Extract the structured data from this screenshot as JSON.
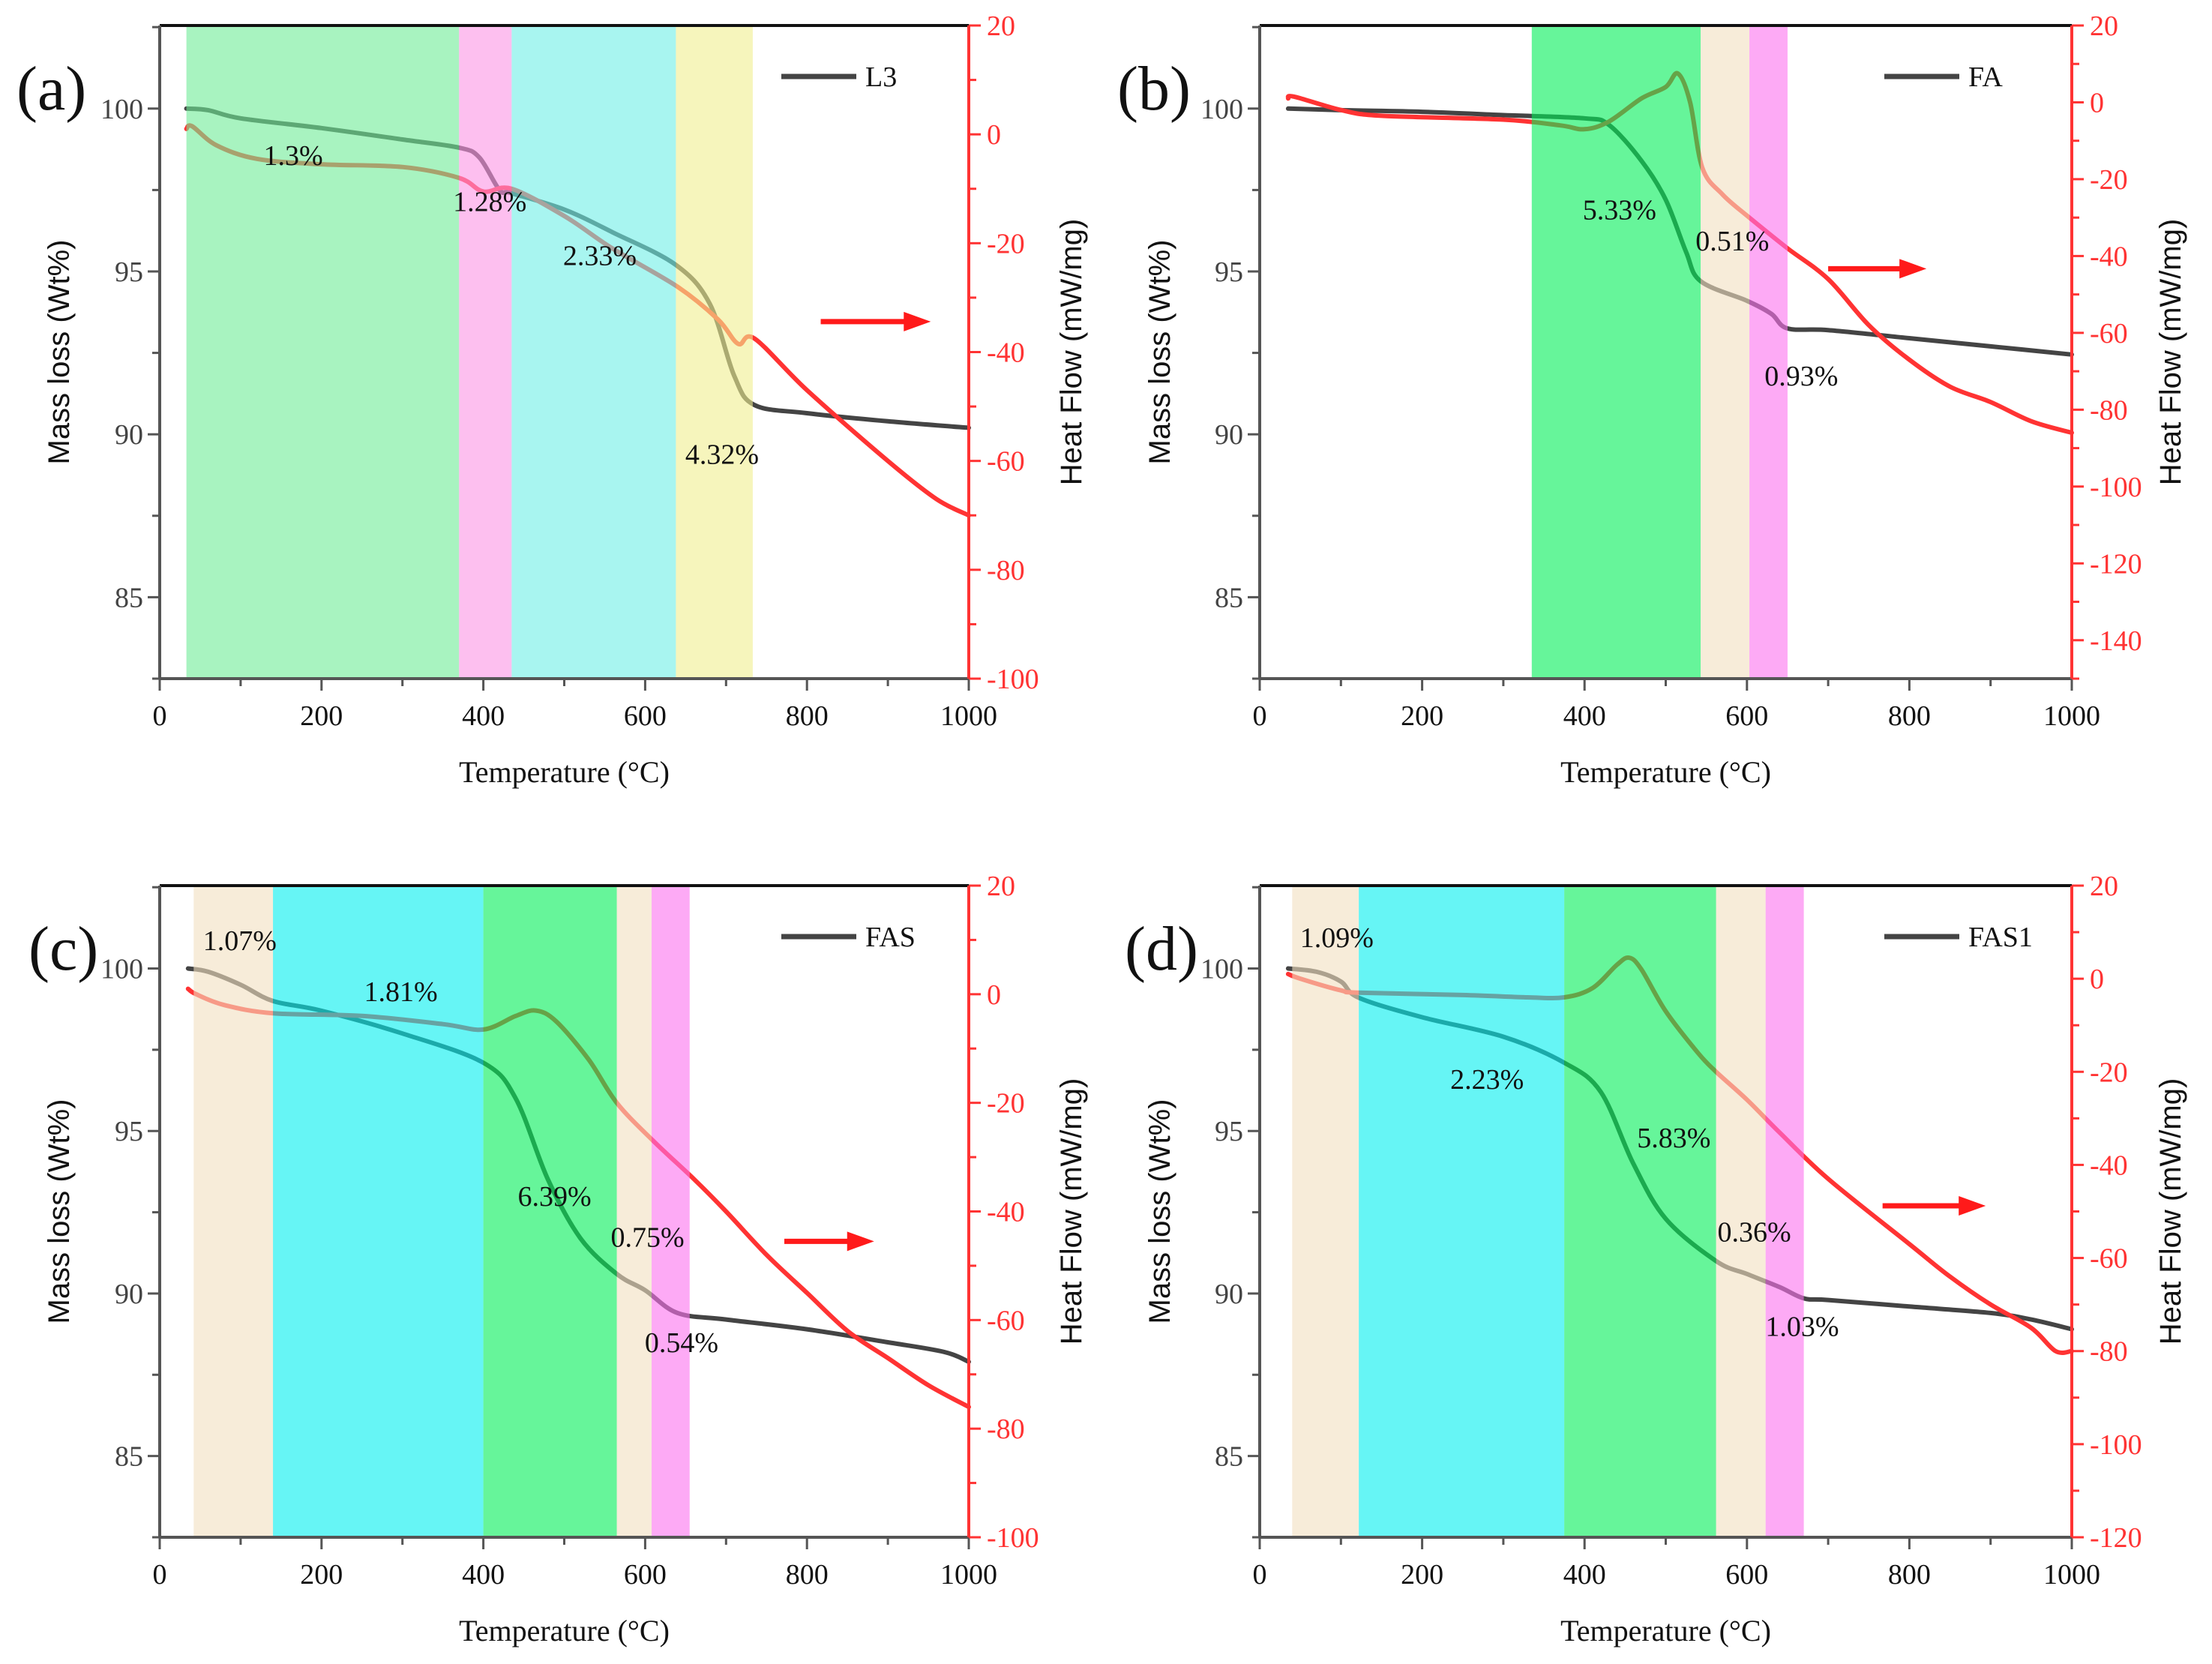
{
  "chart_data": [
    {
      "type": "line",
      "panel_label": "(a)",
      "xlabel": "Temperature (°C)",
      "ylabel": "Mass loss (Wt%)",
      "y2label": "Heat Flow (mW/mg)",
      "xlim": [
        0,
        1000
      ],
      "ylim": [
        82.5,
        102.55
      ],
      "y2lim": [
        -100,
        20
      ],
      "xticks": [
        "0",
        "200",
        "400",
        "600",
        "800",
        "1000"
      ],
      "yticks": [
        "85",
        "90",
        "95",
        "100"
      ],
      "y2ticks": [
        "20",
        "0",
        "-20",
        "-40",
        "-60",
        "-80",
        "-100"
      ],
      "legend": {
        "label": "L3",
        "placement": "top-right"
      },
      "regions": [
        {
          "from": 33,
          "to": 370,
          "color": "#6eeb96"
        },
        {
          "from": 370,
          "to": 435,
          "color": "#fc94e5"
        },
        {
          "from": 435,
          "to": 638,
          "color": "#6eeee6"
        },
        {
          "from": 638,
          "to": 733,
          "color": "#f0ee90"
        }
      ],
      "series": [
        {
          "name": "L3 mass loss",
          "axis": "left",
          "color": "#444444",
          "points": [
            [
              33,
              100
            ],
            [
              60,
              99.95
            ],
            [
              100,
              99.7
            ],
            [
              200,
              99.4
            ],
            [
              300,
              99.05
            ],
            [
              370,
              98.8
            ],
            [
              395,
              98.5
            ],
            [
              420,
              97.5
            ],
            [
              435,
              97.4
            ],
            [
              500,
              96.9
            ],
            [
              560,
              96.2
            ],
            [
              638,
              95.2
            ],
            [
              680,
              94
            ],
            [
              710,
              91.8
            ],
            [
              735,
              90.9
            ],
            [
              800,
              90.65
            ],
            [
              900,
              90.4
            ],
            [
              1000,
              90.2
            ]
          ]
        },
        {
          "name": "L3 heat flow",
          "axis": "right",
          "color": "#ff3333",
          "points": [
            [
              33,
              1
            ],
            [
              40,
              1.5
            ],
            [
              70,
              -2
            ],
            [
              120,
              -4.5
            ],
            [
              200,
              -5.5
            ],
            [
              300,
              -6
            ],
            [
              370,
              -8
            ],
            [
              400,
              -10.5
            ],
            [
              435,
              -10
            ],
            [
              500,
              -15
            ],
            [
              560,
              -21
            ],
            [
              640,
              -28
            ],
            [
              690,
              -34
            ],
            [
              715,
              -38.5
            ],
            [
              735,
              -37.5
            ],
            [
              800,
              -47
            ],
            [
              900,
              -60
            ],
            [
              960,
              -67
            ],
            [
              1000,
              -70
            ]
          ]
        }
      ],
      "annotations": [
        {
          "text": "1.3%",
          "x": 165,
          "y": 98.57
        },
        {
          "text": "1.28%",
          "x": 408,
          "y": 97.15
        },
        {
          "text": "2.33%",
          "x": 544,
          "y": 95.5
        },
        {
          "text": "4.32%",
          "x": 695,
          "y": 89.4
        }
      ],
      "arrow": {
        "from": 817,
        "to": 953,
        "y2": -34.4,
        "direction": "right"
      }
    },
    {
      "type": "line",
      "panel_label": "(b)",
      "xlabel": "Temperature (°C)",
      "ylabel": "Mass loss (Wt%)",
      "y2label": "Heat Flow (mW/mg)",
      "xlim": [
        0,
        1000
      ],
      "ylim": [
        82.5,
        102.55
      ],
      "y2lim": [
        -150,
        20
      ],
      "xticks": [
        "0",
        "200",
        "400",
        "600",
        "800",
        "1000"
      ],
      "yticks": [
        "85",
        "90",
        "95",
        "100"
      ],
      "y2ticks": [
        "20",
        "0",
        "-20",
        "-40",
        "-60",
        "-80",
        "-100",
        "-120",
        "-140"
      ],
      "legend": {
        "label": "FA",
        "placement": "top-right"
      },
      "regions": [
        {
          "from": 335,
          "to": 543,
          "color": "#00ee57"
        },
        {
          "from": 543,
          "to": 603,
          "color": "#f2dfc0"
        },
        {
          "from": 603,
          "to": 650,
          "color": "#fc71ee"
        }
      ],
      "series": [
        {
          "name": "FA mass loss",
          "axis": "left",
          "color": "#444444",
          "points": [
            [
              35,
              100
            ],
            [
              100,
              99.95
            ],
            [
              200,
              99.9
            ],
            [
              300,
              99.8
            ],
            [
              400,
              99.7
            ],
            [
              430,
              99.5
            ],
            [
              470,
              98.4
            ],
            [
              500,
              97.2
            ],
            [
              525,
              95.6
            ],
            [
              543,
              94.7
            ],
            [
              600,
              94.1
            ],
            [
              630,
              93.7
            ],
            [
              650,
              93.25
            ],
            [
              700,
              93.2
            ],
            [
              800,
              92.95
            ],
            [
              900,
              92.7
            ],
            [
              1000,
              92.45
            ]
          ]
        },
        {
          "name": "FA heat flow",
          "axis": "right",
          "color": "#ff3333",
          "points": [
            [
              35,
              1
            ],
            [
              42,
              1.5
            ],
            [
              100,
              -2
            ],
            [
              150,
              -3.5
            ],
            [
              300,
              -4.5
            ],
            [
              370,
              -6
            ],
            [
              400,
              -7
            ],
            [
              430,
              -5
            ],
            [
              470,
              1
            ],
            [
              500,
              4
            ],
            [
              515,
              7.5
            ],
            [
              530,
              0
            ],
            [
              545,
              -17
            ],
            [
              570,
              -24
            ],
            [
              603,
              -30
            ],
            [
              650,
              -38
            ],
            [
              700,
              -46
            ],
            [
              750,
              -58
            ],
            [
              800,
              -67
            ],
            [
              850,
              -74
            ],
            [
              900,
              -78
            ],
            [
              950,
              -83
            ],
            [
              1000,
              -86
            ]
          ]
        }
      ],
      "annotations": [
        {
          "text": "5.33%",
          "x": 443,
          "y": 96.9
        },
        {
          "text": "0.51%",
          "x": 582,
          "y": 95.94
        },
        {
          "text": "0.93%",
          "x": 667,
          "y": 91.8
        }
      ],
      "arrow": {
        "from": 700,
        "to": 821,
        "y2": -43.3,
        "direction": "right"
      }
    },
    {
      "type": "line",
      "panel_label": "(c)",
      "xlabel": "Temperature (°C)",
      "ylabel": "Mass loss (Wt%)",
      "y2label": "Heat Flow (mW/mg)",
      "xlim": [
        0,
        1000
      ],
      "ylim": [
        82.5,
        102.55
      ],
      "y2lim": [
        -100,
        20
      ],
      "xticks": [
        "0",
        "200",
        "400",
        "600",
        "800",
        "1000"
      ],
      "yticks": [
        "85",
        "90",
        "95",
        "100"
      ],
      "y2ticks": [
        "20",
        "0",
        "-20",
        "-40",
        "-60",
        "-80",
        "-100"
      ],
      "legend": {
        "label": "FAS",
        "placement": "top-right"
      },
      "regions": [
        {
          "from": 42,
          "to": 140,
          "color": "#f2dfc0"
        },
        {
          "from": 140,
          "to": 400,
          "color": "#00eeee"
        },
        {
          "from": 400,
          "to": 565,
          "color": "#00ee57"
        },
        {
          "from": 565,
          "to": 608,
          "color": "#f2dfc0"
        },
        {
          "from": 608,
          "to": 655,
          "color": "#fc71ee"
        }
      ],
      "series": [
        {
          "name": "FAS mass loss",
          "axis": "left",
          "color": "#444444",
          "points": [
            [
              35,
              100
            ],
            [
              60,
              99.9
            ],
            [
              100,
              99.5
            ],
            [
              140,
              99.0
            ],
            [
              200,
              98.7
            ],
            [
              300,
              98
            ],
            [
              400,
              97.1
            ],
            [
              440,
              96
            ],
            [
              480,
              93.5
            ],
            [
              520,
              91.7
            ],
            [
              565,
              90.6
            ],
            [
              600,
              90.1
            ],
            [
              640,
              89.4
            ],
            [
              700,
              89.2
            ],
            [
              800,
              88.9
            ],
            [
              900,
              88.5
            ],
            [
              970,
              88.2
            ],
            [
              1000,
              87.9
            ]
          ]
        },
        {
          "name": "FAS heat flow",
          "axis": "right",
          "color": "#ff3333",
          "points": [
            [
              35,
              1
            ],
            [
              45,
              0
            ],
            [
              80,
              -2
            ],
            [
              140,
              -3.5
            ],
            [
              250,
              -4
            ],
            [
              350,
              -5.5
            ],
            [
              400,
              -6.5
            ],
            [
              440,
              -4
            ],
            [
              465,
              -3
            ],
            [
              490,
              -5
            ],
            [
              530,
              -12
            ],
            [
              565,
              -20
            ],
            [
              610,
              -27
            ],
            [
              660,
              -34
            ],
            [
              700,
              -40
            ],
            [
              750,
              -48
            ],
            [
              800,
              -55
            ],
            [
              850,
              -62
            ],
            [
              900,
              -67
            ],
            [
              950,
              -72
            ],
            [
              1000,
              -76
            ]
          ]
        }
      ],
      "annotations": [
        {
          "text": "1.07%",
          "x": 99,
          "y": 100.87
        },
        {
          "text": "1.81%",
          "x": 298,
          "y": 99.3
        },
        {
          "text": "6.39%",
          "x": 488,
          "y": 93.0
        },
        {
          "text": "0.75%",
          "x": 603,
          "y": 91.74
        },
        {
          "text": "0.54%",
          "x": 645,
          "y": 88.5
        }
      ],
      "arrow": {
        "from": 772,
        "to": 883,
        "y2": -45.5,
        "direction": "right"
      }
    },
    {
      "type": "line",
      "panel_label": "(d)",
      "xlabel": "Temperature (°C)",
      "ylabel": "Mass loss (Wt%)",
      "y2label": "Heat Flow (mW/mg)",
      "xlim": [
        0,
        1000
      ],
      "ylim": [
        82.5,
        102.55
      ],
      "y2lim": [
        -120,
        20
      ],
      "xticks": [
        "0",
        "200",
        "400",
        "600",
        "800",
        "1000"
      ],
      "yticks": [
        "85",
        "90",
        "95",
        "100"
      ],
      "y2ticks": [
        "20",
        "0",
        "-20",
        "-40",
        "-60",
        "-80",
        "-100",
        "-120"
      ],
      "legend": {
        "label": "FAS1",
        "placement": "top-right"
      },
      "regions": [
        {
          "from": 40,
          "to": 122,
          "color": "#f2dfc0"
        },
        {
          "from": 122,
          "to": 375,
          "color": "#00eeee"
        },
        {
          "from": 375,
          "to": 562,
          "color": "#00ee57"
        },
        {
          "from": 562,
          "to": 623,
          "color": "#f2dfc0"
        },
        {
          "from": 623,
          "to": 670,
          "color": "#fc71ee"
        }
      ],
      "series": [
        {
          "name": "FAS1 mass loss",
          "axis": "left",
          "color": "#444444",
          "points": [
            [
              35,
              100
            ],
            [
              70,
              99.9
            ],
            [
              100,
              99.6
            ],
            [
              122,
              99.1
            ],
            [
              200,
              98.5
            ],
            [
              300,
              97.9
            ],
            [
              375,
              97.1
            ],
            [
              420,
              96.2
            ],
            [
              460,
              94
            ],
            [
              500,
              92.3
            ],
            [
              562,
              91
            ],
            [
              600,
              90.6
            ],
            [
              640,
              90.2
            ],
            [
              670,
              89.85
            ],
            [
              700,
              89.8
            ],
            [
              800,
              89.6
            ],
            [
              900,
              89.4
            ],
            [
              950,
              89.2
            ],
            [
              1000,
              88.9
            ]
          ]
        },
        {
          "name": "FAS1 heat flow",
          "axis": "right",
          "color": "#ff3333",
          "points": [
            [
              35,
              1
            ],
            [
              50,
              0
            ],
            [
              100,
              -2.5
            ],
            [
              122,
              -3
            ],
            [
              250,
              -3.5
            ],
            [
              330,
              -4
            ],
            [
              375,
              -4
            ],
            [
              410,
              -2
            ],
            [
              440,
              3
            ],
            [
              455,
              4.5
            ],
            [
              470,
              2
            ],
            [
              500,
              -7
            ],
            [
              540,
              -16
            ],
            [
              562,
              -20
            ],
            [
              600,
              -26
            ],
            [
              640,
              -33
            ],
            [
              700,
              -43
            ],
            [
              800,
              -57
            ],
            [
              850,
              -64
            ],
            [
              900,
              -70
            ],
            [
              950,
              -75
            ],
            [
              980,
              -80
            ],
            [
              1000,
              -80
            ]
          ]
        }
      ],
      "annotations": [
        {
          "text": "1.09%",
          "x": 95,
          "y": 100.96
        },
        {
          "text": "2.23%",
          "x": 280,
          "y": 96.6
        },
        {
          "text": "5.83%",
          "x": 510,
          "y": 94.8
        },
        {
          "text": "0.36%",
          "x": 609,
          "y": 91.9
        },
        {
          "text": "1.03%",
          "x": 668,
          "y": 89.0
        }
      ],
      "arrow": {
        "from": 767,
        "to": 894,
        "y2": -48.8,
        "direction": "right"
      }
    }
  ]
}
